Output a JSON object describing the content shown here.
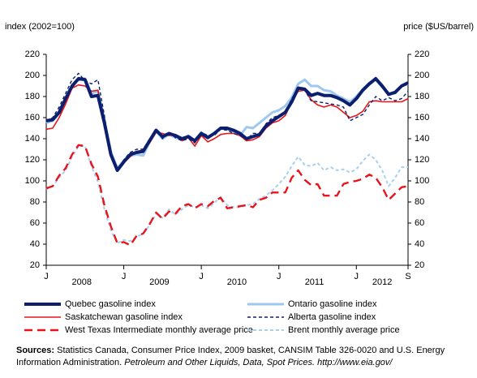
{
  "chart_data": {
    "type": "line",
    "y_label": "index (2002=100)",
    "y2_label": "price ($US/barrel)",
    "categories": [
      "J",
      null,
      null,
      null,
      null,
      null,
      null,
      null,
      null,
      null,
      null,
      null,
      "J",
      null,
      null,
      null,
      null,
      null,
      null,
      null,
      null,
      null,
      null,
      null,
      "J",
      null,
      null,
      null,
      null,
      null,
      null,
      null,
      null,
      null,
      null,
      null,
      "J",
      null,
      null,
      null,
      null,
      null,
      null,
      null,
      null,
      null,
      null,
      null,
      "J",
      null,
      null,
      null,
      null,
      null,
      null,
      null,
      "S"
    ],
    "x_group_labels": [
      "2008",
      "2009",
      "2010",
      "2011",
      "2012"
    ],
    "ylim": [
      20,
      220
    ],
    "yticks": [
      20,
      40,
      60,
      80,
      100,
      120,
      140,
      160,
      180,
      200,
      220
    ],
    "y2lim": [
      20,
      220
    ],
    "y2ticks": [
      20,
      40,
      60,
      80,
      100,
      120,
      140,
      160,
      180,
      200,
      220
    ],
    "grid": false,
    "series": [
      {
        "name": "Quebec gasoline index",
        "color": "#0b1f6e",
        "dashed": false,
        "values": [
          157,
          158,
          165,
          178,
          190,
          197,
          196,
          180,
          181,
          155,
          125,
          110,
          118,
          125,
          127,
          128,
          138,
          148,
          142,
          145,
          143,
          140,
          142,
          138,
          145,
          141,
          145,
          150,
          150,
          148,
          145,
          140,
          142,
          144,
          152,
          157,
          161,
          165,
          175,
          188,
          187,
          181,
          183,
          181,
          181,
          179,
          176,
          172,
          178,
          186,
          192,
          197,
          190,
          182,
          184,
          190,
          193
        ]
      },
      {
        "name": "Ontario gasoline index",
        "color": "#9ec8ee",
        "dashed": false,
        "values": [
          155,
          157,
          164,
          178,
          189,
          197,
          197,
          183,
          185,
          158,
          128,
          112,
          119,
          124,
          125,
          124,
          137,
          147,
          140,
          144,
          141,
          139,
          143,
          138,
          146,
          142,
          145,
          150,
          149,
          147,
          143,
          151,
          150,
          155,
          160,
          165,
          167,
          171,
          179,
          192,
          196,
          190,
          190,
          186,
          185,
          181,
          178,
          175,
          180,
          187,
          193,
          196,
          189,
          183,
          183,
          190,
          192
        ]
      },
      {
        "name": "Saskatchewan gasoline index",
        "color": "#e8141b",
        "dashed": false,
        "values": [
          149,
          150,
          160,
          173,
          188,
          191,
          190,
          185,
          186,
          155,
          123,
          110,
          117,
          123,
          128,
          129,
          136,
          146,
          145,
          143,
          144,
          138,
          141,
          133,
          143,
          137,
          140,
          144,
          145,
          145,
          143,
          138,
          139,
          142,
          150,
          155,
          157,
          162,
          175,
          185,
          186,
          177,
          172,
          170,
          172,
          170,
          165,
          160,
          162,
          166,
          175,
          176,
          175,
          175,
          175,
          175,
          178
        ]
      },
      {
        "name": "Alberta gasoline index",
        "color": "#0b1f6e",
        "dashed": true,
        "values": [
          157,
          160,
          170,
          183,
          196,
          202,
          195,
          192,
          196,
          162,
          122,
          110,
          120,
          127,
          130,
          130,
          140,
          148,
          140,
          146,
          141,
          138,
          140,
          136,
          146,
          143,
          143,
          149,
          148,
          145,
          143,
          139,
          145,
          145,
          154,
          160,
          162,
          165,
          178,
          188,
          186,
          176,
          175,
          174,
          173,
          172,
          170,
          157,
          160,
          163,
          172,
          180,
          176,
          179,
          176,
          178,
          185
        ]
      },
      {
        "name": "West Texas Intermediate monthly average price",
        "color": "#e8141b",
        "dashed": true,
        "axis": "y2",
        "values": [
          93,
          95,
          105,
          112,
          125,
          134,
          133,
          116,
          104,
          77,
          57,
          41,
          42,
          39,
          48,
          50,
          59,
          70,
          64,
          71,
          69,
          76,
          78,
          74,
          78,
          76,
          81,
          84,
          74,
          75,
          76,
          77,
          75,
          82,
          84,
          89,
          89,
          89,
          103,
          110,
          101,
          96,
          97,
          86,
          86,
          86,
          97,
          99,
          100,
          102,
          106,
          103,
          94,
          82,
          88,
          94,
          95
        ]
      },
      {
        "name": "Brent monthly average price",
        "color": "#a8d0f0",
        "dashed": true,
        "axis": "y2",
        "values": [
          92,
          95,
          103,
          110,
          123,
          133,
          133,
          114,
          99,
          73,
          53,
          41,
          44,
          43,
          47,
          50,
          58,
          69,
          65,
          73,
          68,
          73,
          77,
          75,
          77,
          74,
          79,
          85,
          77,
          75,
          75,
          77,
          78,
          83,
          86,
          91,
          97,
          104,
          114,
          123,
          115,
          114,
          117,
          110,
          113,
          110,
          111,
          108,
          111,
          119,
          125,
          120,
          110,
          95,
          103,
          113,
          113
        ]
      }
    ],
    "source_label": "Sources:",
    "source_text": "Statistics Canada, Consumer Price Index, 2009 basket, CANSIM Table 326-0020 and U.S. Energy Information Administration.",
    "source_italic": "Petroleum and Other Liquids, Data, Spot Prices.",
    "source_url": "http://www.eia.gov/"
  }
}
